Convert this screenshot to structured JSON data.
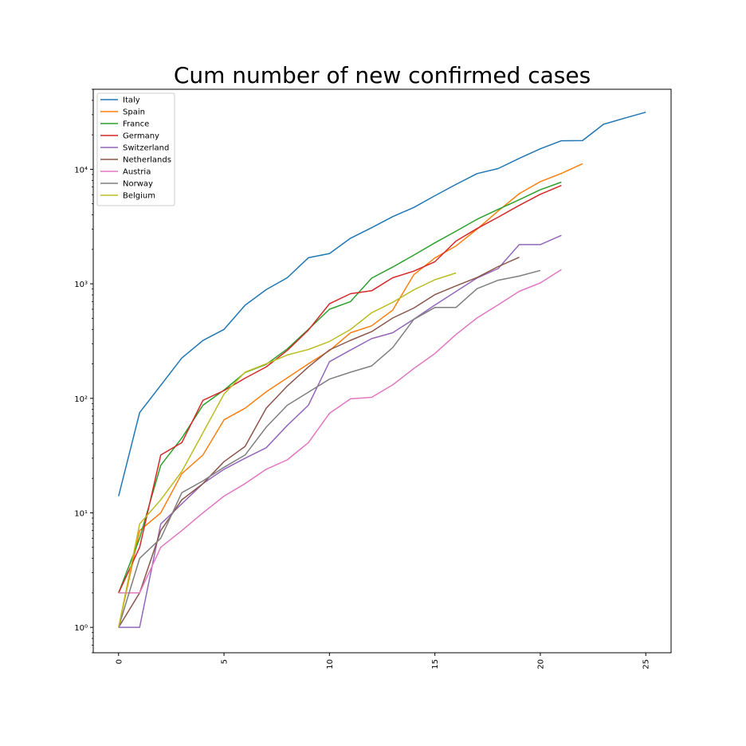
{
  "chart_data": {
    "type": "line",
    "title": "Cum number of new confirmed cases",
    "xlabel": "",
    "ylabel": "",
    "yscale": "log",
    "xlim": [
      -1.2,
      26.2
    ],
    "ylim": [
      0.6,
      50000
    ],
    "x_ticks": [
      "0",
      "5",
      "10",
      "15",
      "20",
      "25"
    ],
    "x_tick_rotation": "vertical",
    "y_ticks": [
      "10⁰",
      "10¹",
      "10²",
      "10³",
      "10⁴"
    ],
    "legend_location": "upper-left",
    "grid": false,
    "series": [
      {
        "name": "Italy",
        "color": "#1f77b4",
        "x": [
          0,
          1,
          2,
          3,
          4,
          5,
          6,
          7,
          8,
          9,
          10,
          11,
          12,
          13,
          14,
          15,
          16,
          17,
          18,
          19,
          20,
          21,
          22,
          23,
          24,
          25
        ],
        "y": [
          14,
          75,
          130,
          225,
          320,
          400,
          650,
          890,
          1130,
          1690,
          1840,
          2500,
          3090,
          3860,
          4640,
          5880,
          7380,
          9170,
          10150,
          12460,
          15110,
          17750,
          17800,
          24750,
          27980,
          31500
        ]
      },
      {
        "name": "Spain",
        "color": "#ff7f0e",
        "x": [
          0,
          1,
          2,
          3,
          4,
          5,
          6,
          7,
          8,
          9,
          10,
          11,
          12,
          13,
          14,
          15,
          16,
          17,
          18,
          19,
          20,
          21,
          22
        ],
        "y": [
          1,
          7,
          10,
          22,
          32,
          65,
          82,
          114,
          151,
          200,
          261,
          374,
          430,
          589,
          1200,
          1680,
          2140,
          3000,
          4330,
          6130,
          7800,
          9200,
          11200
        ]
      },
      {
        "name": "France",
        "color": "#2ca02c",
        "x": [
          0,
          1,
          2,
          3,
          4,
          5,
          6,
          7,
          8,
          9,
          10,
          11,
          12,
          13,
          14,
          15,
          16,
          17,
          18,
          19,
          20,
          21
        ],
        "y": [
          2,
          6,
          26,
          45,
          87,
          118,
          168,
          198,
          270,
          400,
          600,
          700,
          1120,
          1400,
          1780,
          2280,
          2880,
          3660,
          4470,
          5420,
          6630,
          7730
        ]
      },
      {
        "name": "Germany",
        "color": "#d62728",
        "x": [
          0,
          1,
          2,
          3,
          4,
          5,
          6,
          7,
          8,
          9,
          10,
          11,
          12,
          13,
          14,
          15,
          16,
          17,
          18,
          19,
          20,
          21
        ],
        "y": [
          2,
          5,
          32,
          41,
          96,
          117,
          150,
          188,
          262,
          394,
          670,
          820,
          870,
          1130,
          1290,
          1560,
          2360,
          3040,
          3820,
          4840,
          6050,
          7220
        ]
      },
      {
        "name": "Switzerland",
        "color": "#9467bd",
        "x": [
          0,
          1,
          2,
          3,
          4,
          5,
          6,
          7,
          8,
          9,
          10,
          11,
          12,
          13,
          14,
          15,
          16,
          17,
          18,
          19,
          20,
          21
        ],
        "y": [
          1,
          1,
          8,
          12,
          18,
          24,
          30,
          37,
          58,
          87,
          209,
          264,
          332,
          374,
          491,
          652,
          858,
          1125,
          1359,
          2200,
          2200,
          2650
        ]
      },
      {
        "name": "Netherlands",
        "color": "#8c564b",
        "x": [
          0,
          1,
          2,
          3,
          4,
          5,
          6,
          7,
          8,
          9,
          10,
          11,
          12,
          13,
          14,
          15,
          16,
          17,
          18,
          19
        ],
        "y": [
          1,
          2,
          7,
          13,
          18,
          28,
          38,
          82,
          128,
          188,
          265,
          321,
          382,
          503,
          614,
          804,
          959,
          1135,
          1413,
          1705
        ]
      },
      {
        "name": "Austria",
        "color": "#e377c2",
        "x": [
          0,
          1,
          2,
          3,
          4,
          5,
          6,
          7,
          8,
          9,
          10,
          11,
          12,
          13,
          14,
          15,
          16,
          17,
          18,
          19,
          20,
          21
        ],
        "y": [
          2,
          2,
          5,
          7,
          10,
          14,
          18,
          24,
          29,
          41,
          74,
          99,
          102,
          131,
          182,
          246,
          361,
          504,
          655,
          860,
          1018,
          1332
        ]
      },
      {
        "name": "Norway",
        "color": "#7f7f7f",
        "x": [
          0,
          1,
          2,
          3,
          4,
          5,
          6,
          7,
          8,
          9,
          10,
          11,
          12,
          13,
          14,
          15,
          16,
          17,
          18,
          19,
          20
        ],
        "y": [
          1,
          4,
          6,
          15,
          19,
          25,
          32,
          56,
          87,
          113,
          147,
          169,
          192,
          277,
          489,
          621,
          621,
          907,
          1075,
          1169,
          1309
        ]
      },
      {
        "name": "Belgium",
        "color": "#bcbd22",
        "x": [
          0,
          1,
          2,
          3,
          4,
          5,
          6,
          7,
          8,
          9,
          10,
          11,
          12,
          13,
          14,
          15,
          16
        ],
        "y": [
          1,
          8,
          13,
          23,
          50,
          109,
          169,
          200,
          239,
          267,
          314,
          399,
          559,
          689,
          886,
          1085,
          1243
        ]
      }
    ]
  }
}
